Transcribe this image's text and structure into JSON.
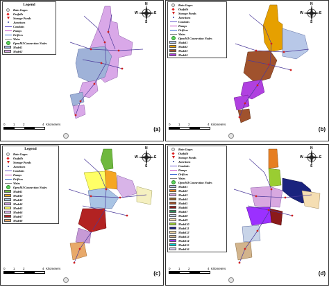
{
  "legend_items": [
    {
      "label": "Rain Gages",
      "icon": "rain-gage-icon"
    },
    {
      "label": "Outfalls",
      "icon": "outfall-icon"
    },
    {
      "label": "Storage Ponds",
      "icon": "storage-pond-icon"
    },
    {
      "label": "Junctions",
      "icon": "junction-icon"
    },
    {
      "label": "Conduits",
      "icon": "conduit-icon"
    },
    {
      "label": "Pumps",
      "icon": "pump-icon"
    },
    {
      "label": "Orifices",
      "icon": "orifice-icon"
    },
    {
      "label": "Weirs",
      "icon": "weir-icon"
    },
    {
      "label": "OpenMI Connection Nodes",
      "icon": "connection-node-icon"
    }
  ],
  "panels": [
    {
      "tag": "(a)",
      "legend_title": "Legend",
      "models": [
        {
          "label": "Model1",
          "color": "#9fb2d8"
        },
        {
          "label": "Model2",
          "color": "#d9a8e8"
        }
      ]
    },
    {
      "tag": "(b)",
      "legend_title": "",
      "models": [
        {
          "label": "Model1",
          "color": "#b8c8e8"
        },
        {
          "label": "Model2",
          "color": "#e6a000"
        },
        {
          "label": "Model3",
          "color": "#a0522d"
        },
        {
          "label": "Model4",
          "color": "#b040e0"
        }
      ]
    },
    {
      "tag": "(c)",
      "legend_title": "Legend",
      "models": [
        {
          "label": "Model1",
          "color": "#6fb83f"
        },
        {
          "label": "Model2",
          "color": "#f5a623"
        },
        {
          "label": "Model3",
          "color": "#a9c4e4"
        },
        {
          "label": "Model4",
          "color": "#c79ad6"
        },
        {
          "label": "Model5",
          "color": "#ffff66"
        },
        {
          "label": "Model6",
          "color": "#d8b4e8"
        },
        {
          "label": "Model7",
          "color": "#b22222"
        },
        {
          "label": "Model8",
          "color": "#e8a96a"
        }
      ]
    },
    {
      "tag": "(d)",
      "legend_title": "",
      "models": [
        {
          "label": "Model1",
          "color": "#b8c8e8"
        },
        {
          "label": "Model2",
          "color": "#e67e22"
        },
        {
          "label": "Model3",
          "color": "#d8a8e0"
        },
        {
          "label": "Model4",
          "color": "#8b5a2b"
        },
        {
          "label": "Model5",
          "color": "#a0522d"
        },
        {
          "label": "Model6",
          "color": "#8b1a1a"
        },
        {
          "label": "Model7",
          "color": "#2e8b57"
        },
        {
          "label": "Model8",
          "color": "#c8d4e8"
        },
        {
          "label": "Model9",
          "color": "#f5deb3"
        },
        {
          "label": "Model10",
          "color": "#9acd32"
        },
        {
          "label": "Model11",
          "color": "#1a237e"
        },
        {
          "label": "Model12",
          "color": "#e8d0a0"
        },
        {
          "label": "Model13",
          "color": "#d2b48c"
        },
        {
          "label": "Model14",
          "color": "#9b30ff"
        },
        {
          "label": "Model15",
          "color": "#00ced1"
        },
        {
          "label": "Model16",
          "color": "#d8c8f0"
        }
      ]
    }
  ],
  "compass": {
    "n": "N",
    "s": "S",
    "e": "E",
    "w": "W"
  },
  "scale": {
    "ticks": [
      "0",
      "1",
      "2",
      "4"
    ],
    "unit": "Kilometers"
  }
}
